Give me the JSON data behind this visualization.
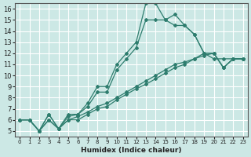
{
  "xlabel": "Humidex (Indice chaleur)",
  "ylabel": "",
  "xlim": [
    -0.5,
    23.5
  ],
  "ylim": [
    4.5,
    16.5
  ],
  "xticks": [
    0,
    1,
    2,
    3,
    4,
    5,
    6,
    7,
    8,
    9,
    10,
    11,
    12,
    13,
    14,
    15,
    16,
    17,
    18,
    19,
    20,
    21,
    22,
    23
  ],
  "yticks": [
    5,
    6,
    7,
    8,
    9,
    10,
    11,
    12,
    13,
    14,
    15,
    16
  ],
  "bg_color": "#cce8e5",
  "grid_color": "#ffffff",
  "line_color": "#2e7d6e",
  "lines": [
    {
      "x": [
        0,
        1,
        2,
        3,
        4,
        5,
        6,
        7,
        8,
        9,
        10,
        11,
        12,
        13,
        14,
        15,
        16,
        17,
        18,
        19,
        20,
        21,
        22,
        23
      ],
      "y": [
        6.0,
        6.0,
        5.0,
        6.5,
        5.2,
        6.5,
        6.5,
        7.5,
        9.0,
        9.0,
        11.0,
        12.0,
        13.0,
        16.5,
        16.5,
        15.0,
        15.5,
        14.5,
        13.7,
        12.0,
        12.0,
        10.7,
        11.5,
        11.5
      ]
    },
    {
      "x": [
        0,
        1,
        2,
        3,
        4,
        5,
        6,
        7,
        8,
        9,
        10,
        11,
        12,
        13,
        14,
        15,
        16,
        17,
        18,
        19,
        20,
        21,
        22,
        23
      ],
      "y": [
        6.0,
        6.0,
        5.0,
        6.5,
        5.2,
        6.3,
        6.5,
        7.2,
        8.5,
        8.5,
        10.5,
        11.5,
        12.5,
        15.0,
        15.0,
        15.0,
        14.5,
        14.5,
        13.7,
        12.0,
        12.0,
        10.7,
        11.5,
        11.5
      ]
    },
    {
      "x": [
        0,
        1,
        2,
        3,
        4,
        5,
        6,
        7,
        8,
        9,
        10,
        11,
        12,
        13,
        14,
        15,
        16,
        17,
        18,
        19,
        20,
        21,
        22,
        23
      ],
      "y": [
        6.0,
        6.0,
        5.0,
        6.0,
        5.2,
        6.0,
        6.3,
        6.7,
        7.2,
        7.5,
        8.0,
        8.5,
        9.0,
        9.5,
        10.0,
        10.5,
        11.0,
        11.2,
        11.5,
        11.8,
        12.0,
        10.7,
        11.5,
        11.5
      ]
    },
    {
      "x": [
        0,
        1,
        2,
        3,
        4,
        5,
        6,
        7,
        8,
        9,
        10,
        11,
        12,
        13,
        14,
        15,
        16,
        17,
        18,
        19,
        20,
        21,
        22,
        23
      ],
      "y": [
        6.0,
        6.0,
        5.0,
        6.0,
        5.2,
        6.0,
        6.0,
        6.5,
        7.0,
        7.2,
        7.8,
        8.3,
        8.8,
        9.2,
        9.7,
        10.2,
        10.7,
        11.0,
        11.5,
        12.0,
        11.5,
        11.5,
        11.5,
        11.5
      ]
    }
  ]
}
